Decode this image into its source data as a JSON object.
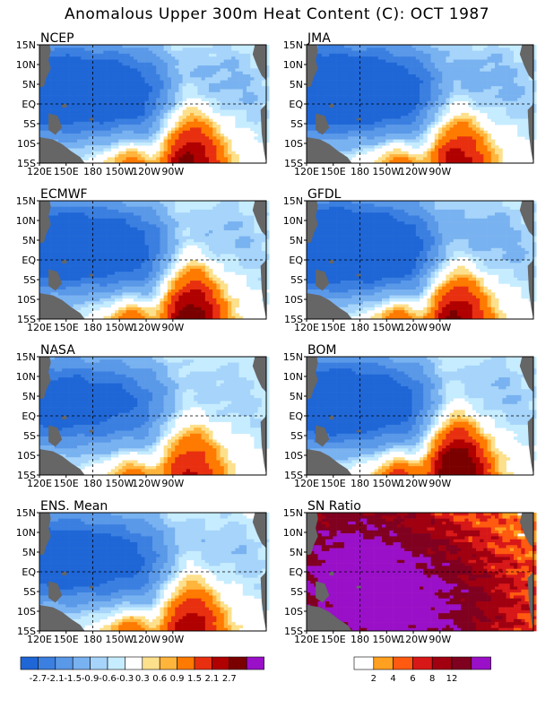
{
  "title": "Anomalous Upper 300m Heat Content (C): OCT 1987",
  "chart_data": [
    {
      "type": "heatmap",
      "title": "NCEP",
      "field": "heat-content anomaly",
      "hot": [
        [
          0.62,
          0.93,
          0.12,
          0.72,
          2.3
        ],
        [
          0.7,
          0.93,
          0.15,
          0.5,
          2.0
        ],
        [
          0.58,
          0.88,
          0.15,
          0.45,
          -1.2
        ],
        [
          0.4,
          1.0,
          -0.1,
          0.2,
          1.5
        ],
        [
          0.18,
          0.6,
          0.6,
          0.9,
          1.3
        ]
      ],
      "cool": [
        [
          0.12,
          0.5,
          0.68,
          0.5,
          2.4
        ],
        [
          0.0,
          0.3,
          0.8,
          0.5,
          2.2
        ],
        [
          0.18,
          0.4,
          0.46,
          0.35,
          1.2
        ]
      ]
    },
    {
      "type": "heatmap",
      "title": "JMA",
      "field": "heat-content anomaly",
      "hot": [
        [
          0.62,
          0.93,
          0.12,
          0.72,
          2.0
        ],
        [
          0.7,
          0.93,
          0.15,
          0.5,
          1.8
        ],
        [
          0.58,
          0.88,
          0.15,
          0.45,
          -1.1
        ],
        [
          0.4,
          1.0,
          -0.1,
          0.2,
          1.5
        ],
        [
          0.18,
          0.6,
          0.6,
          0.9,
          1.2
        ]
      ],
      "cool": [
        [
          0.12,
          0.5,
          0.68,
          0.5,
          2.1
        ],
        [
          0.0,
          0.3,
          0.8,
          0.5,
          2.4
        ],
        [
          0.18,
          0.4,
          0.46,
          0.35,
          1.4
        ]
      ]
    },
    {
      "type": "heatmap",
      "title": "ECMWF",
      "field": "heat-content anomaly",
      "hot": [
        [
          0.62,
          0.93,
          0.12,
          0.72,
          2.4
        ],
        [
          0.7,
          0.93,
          0.15,
          0.5,
          2.3
        ],
        [
          0.58,
          0.88,
          0.15,
          0.45,
          -1.3
        ],
        [
          0.4,
          1.0,
          -0.1,
          0.2,
          1.6
        ],
        [
          0.18,
          0.6,
          0.6,
          0.9,
          1.2
        ]
      ],
      "cool": [
        [
          0.12,
          0.5,
          0.68,
          0.5,
          2.2
        ],
        [
          0.0,
          0.3,
          0.8,
          0.5,
          2.0
        ],
        [
          0.18,
          0.4,
          0.46,
          0.35,
          1.4
        ]
      ]
    },
    {
      "type": "heatmap",
      "title": "GFDL",
      "field": "heat-content anomaly",
      "hot": [
        [
          0.62,
          0.93,
          0.12,
          0.72,
          2.2
        ],
        [
          0.7,
          0.93,
          0.15,
          0.5,
          1.9
        ],
        [
          0.58,
          0.88,
          0.15,
          0.45,
          -1.0
        ],
        [
          0.4,
          1.0,
          -0.1,
          0.2,
          1.6
        ],
        [
          0.18,
          0.6,
          0.6,
          0.9,
          1.3
        ]
      ],
      "cool": [
        [
          0.12,
          0.5,
          0.68,
          0.5,
          2.5
        ],
        [
          0.0,
          0.3,
          0.8,
          0.5,
          2.3
        ],
        [
          0.18,
          0.4,
          0.46,
          0.35,
          1.4
        ]
      ]
    },
    {
      "type": "heatmap",
      "title": "NASA",
      "field": "heat-content anomaly",
      "hot": [
        [
          0.62,
          0.93,
          0.12,
          0.72,
          1.7
        ],
        [
          0.7,
          0.93,
          0.15,
          0.5,
          1.5
        ],
        [
          0.58,
          0.88,
          0.15,
          0.45,
          -0.8
        ],
        [
          0.4,
          1.0,
          -0.1,
          0.2,
          1.3
        ],
        [
          0.18,
          0.6,
          0.6,
          0.9,
          1.1
        ]
      ],
      "cool": [
        [
          0.12,
          0.5,
          0.68,
          0.5,
          1.9
        ],
        [
          0.0,
          0.3,
          0.8,
          0.5,
          1.7
        ],
        [
          0.18,
          0.4,
          0.46,
          0.35,
          1.1
        ]
      ]
    },
    {
      "type": "heatmap",
      "title": "BOM",
      "field": "heat-content anomaly",
      "hot": [
        [
          0.62,
          0.93,
          0.12,
          0.72,
          2.6
        ],
        [
          0.7,
          0.93,
          0.15,
          0.5,
          2.4
        ],
        [
          0.58,
          0.88,
          0.15,
          0.45,
          -1.0
        ],
        [
          0.4,
          1.0,
          -0.1,
          0.2,
          1.8
        ],
        [
          0.18,
          0.6,
          0.6,
          0.9,
          1.3
        ]
      ],
      "cool": [
        [
          0.12,
          0.5,
          0.68,
          0.5,
          2.1
        ],
        [
          0.0,
          0.3,
          0.8,
          0.5,
          2.2
        ],
        [
          0.18,
          0.4,
          0.46,
          0.35,
          1.3
        ]
      ]
    },
    {
      "type": "heatmap",
      "title": "ENS. Mean",
      "field": "heat-content anomaly",
      "hot": [
        [
          0.62,
          0.93,
          0.12,
          0.72,
          2.0
        ],
        [
          0.7,
          0.93,
          0.15,
          0.5,
          1.8
        ],
        [
          0.58,
          0.88,
          0.15,
          0.45,
          -1.0
        ],
        [
          0.4,
          1.0,
          -0.1,
          0.2,
          1.5
        ],
        [
          0.18,
          0.6,
          0.6,
          0.9,
          1.2
        ]
      ],
      "cool": [
        [
          0.12,
          0.5,
          0.68,
          0.5,
          2.0
        ],
        [
          0.0,
          0.3,
          0.8,
          0.5,
          1.9
        ],
        [
          0.18,
          0.4,
          0.46,
          0.35,
          1.3
        ]
      ]
    },
    {
      "type": "heatmap",
      "title": "SN Ratio",
      "field": "signal-to-noise ratio",
      "hot": [
        [
          0.2,
          0.5,
          0.3,
          0.7,
          8.0
        ],
        [
          0.55,
          0.9,
          0.3,
          0.6,
          6.0
        ],
        [
          0.5,
          0.9,
          0.7,
          0.8,
          5.0
        ],
        [
          0.15,
          0.4,
          0.75,
          0.9,
          6.0
        ]
      ],
      "cool": []
    }
  ],
  "map": {
    "x_ticks": [
      "120E",
      "150E",
      "180",
      "150W",
      "120W",
      "90W"
    ],
    "y_ticks": [
      "15N",
      "10N",
      "5N",
      "EQ",
      "5S",
      "10S",
      "15S"
    ],
    "land_color": "#666666"
  },
  "legend_anomaly": {
    "labels": [
      "-2.7",
      "-2.1",
      "-1.5",
      "-0.9",
      "-0.6",
      "-0.3",
      "0.3",
      "0.6",
      "0.9",
      "1.5",
      "2.1",
      "2.7"
    ],
    "colors": [
      "#1f66d6",
      "#3b7fe0",
      "#5a98e8",
      "#79b2f0",
      "#a6d4fa",
      "#c6ecff",
      "#ffffff",
      "#fde08c",
      "#ffb43c",
      "#ff7a00",
      "#e83010",
      "#b00000",
      "#7a0000",
      "#9a10c8"
    ]
  },
  "legend_sn": {
    "labels": [
      "2",
      "4",
      "6",
      "8",
      "12"
    ],
    "colors": [
      "#ffffff",
      "#ffa020",
      "#ff5a10",
      "#d81818",
      "#a00010",
      "#800020",
      "#9a10c8"
    ]
  }
}
